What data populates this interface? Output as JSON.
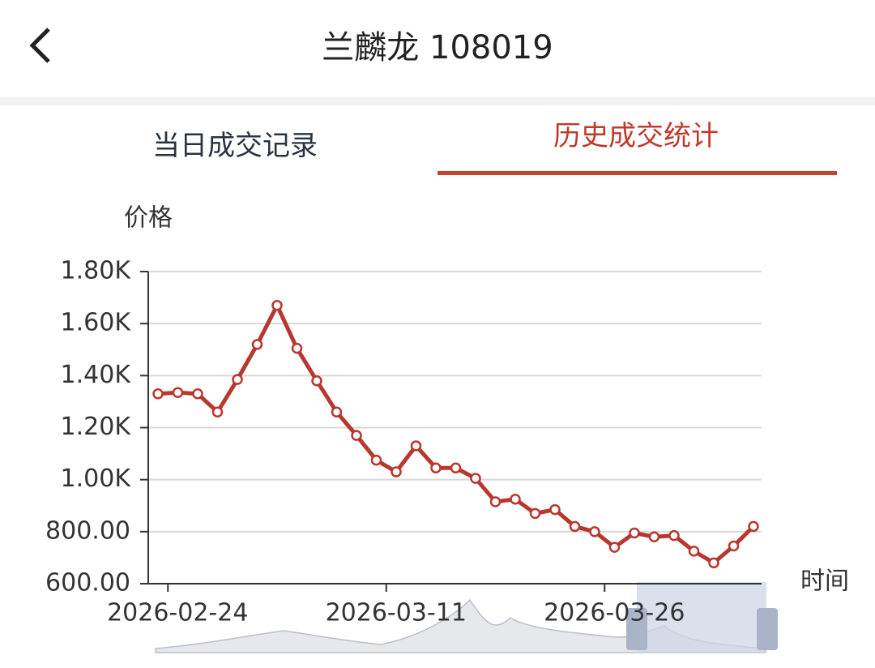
{
  "header": {
    "title": "兰麟龙 108019"
  },
  "tabs": [
    {
      "label": "当日成交记录",
      "active": false
    },
    {
      "label": "历史成交统计",
      "active": true
    }
  ],
  "chart_data": {
    "type": "line",
    "ylabel": "价格",
    "xlabel": "时间",
    "categories": [
      null,
      "2026-02-24",
      null,
      null,
      null,
      null,
      null,
      null,
      null,
      null,
      null,
      null,
      "2026-03-11",
      null,
      null,
      null,
      null,
      null,
      null,
      null,
      null,
      null,
      null,
      "2026-03-26",
      null,
      null,
      null,
      null,
      null,
      null,
      null
    ],
    "values": [
      1330,
      1335,
      1330,
      1260,
      1385,
      1520,
      1670,
      1505,
      1380,
      1260,
      1170,
      1075,
      1030,
      1130,
      1045,
      1045,
      1005,
      915,
      925,
      870,
      885,
      820,
      800,
      740,
      795,
      780,
      785,
      725,
      680,
      745,
      820
    ],
    "color": "#b8372e",
    "ylim": [
      600,
      1800
    ],
    "yticks": [
      {
        "value": 600,
        "label": "600.00"
      },
      {
        "value": 800,
        "label": "800.00"
      },
      {
        "value": 1000,
        "label": "1.00K"
      },
      {
        "value": 1200,
        "label": "1.20K"
      },
      {
        "value": 1400,
        "label": "1.40K"
      },
      {
        "value": 1600,
        "label": "1.60K"
      },
      {
        "value": 1800,
        "label": "1.80K"
      }
    ],
    "grid": true
  }
}
